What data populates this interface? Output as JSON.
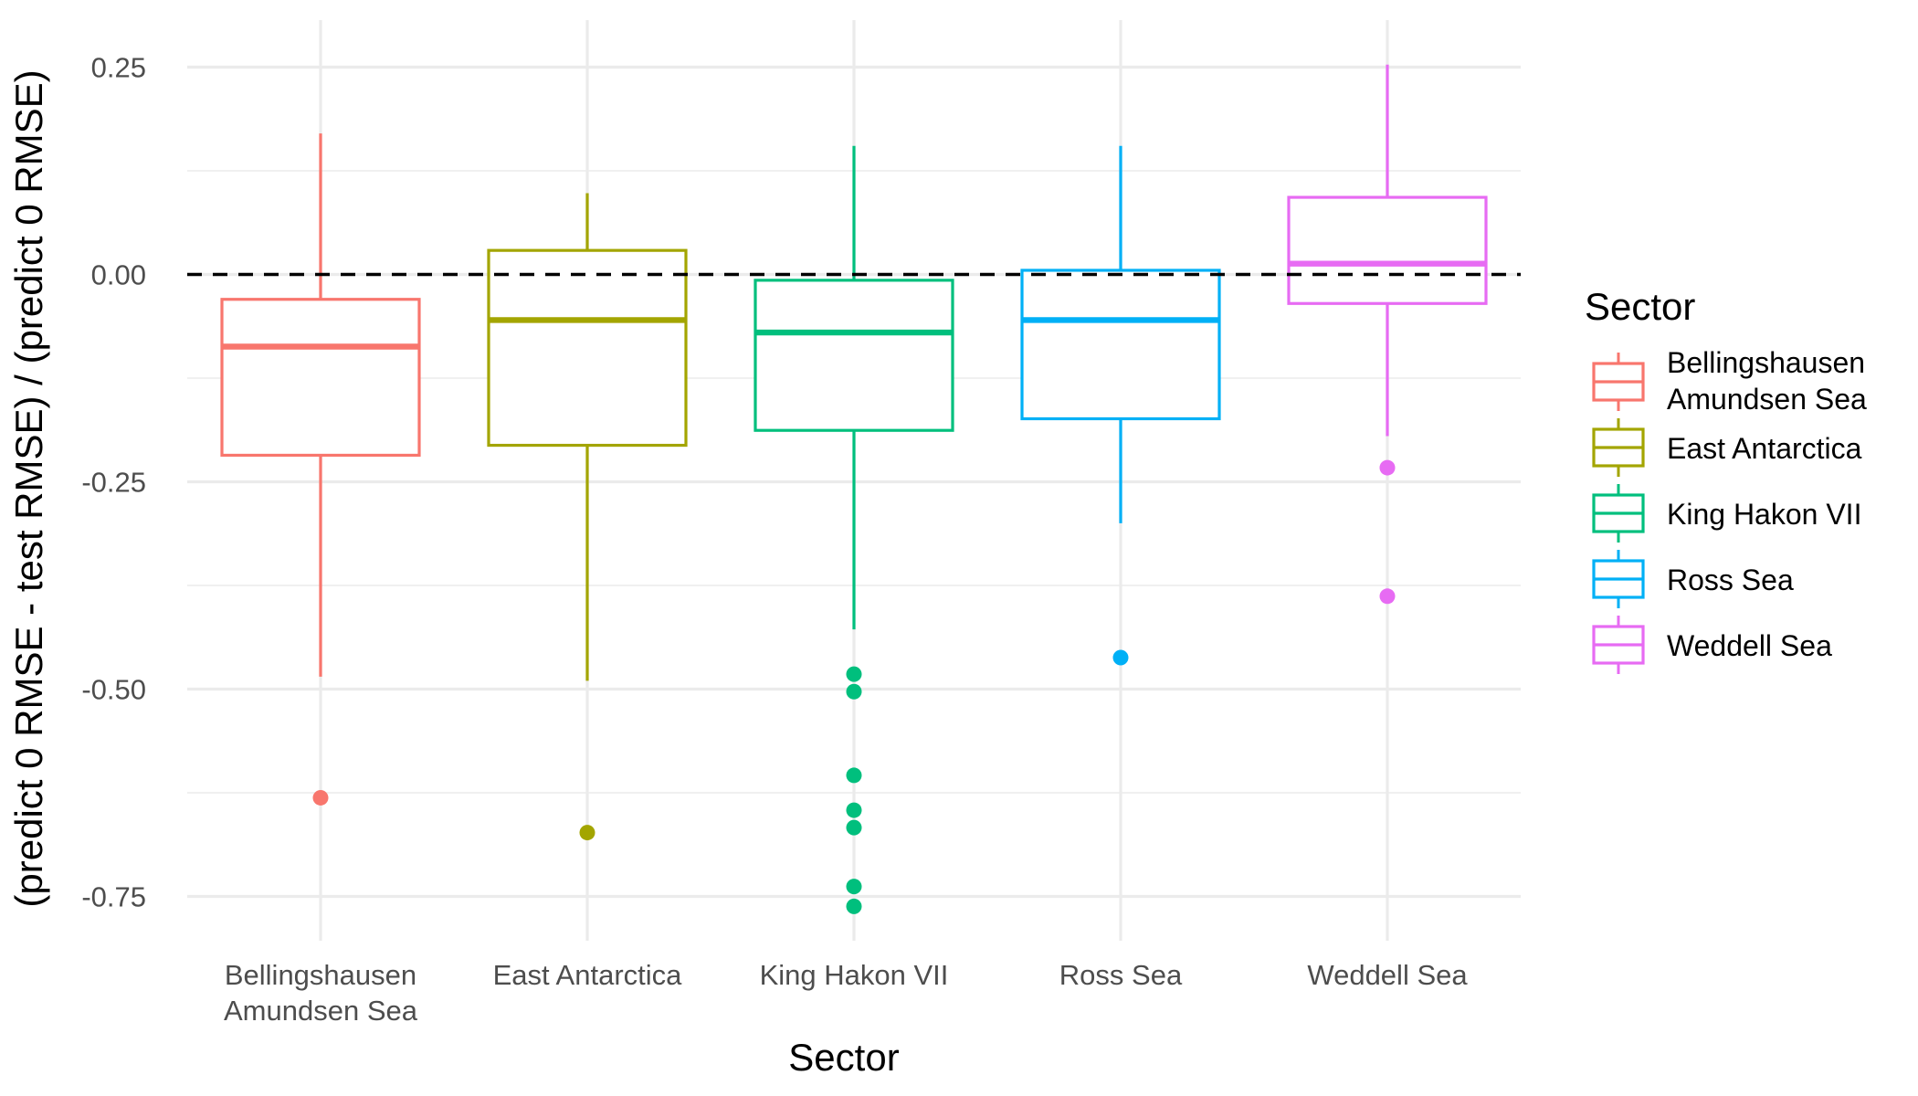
{
  "chart_data": {
    "type": "boxplot",
    "title": "",
    "xlabel": "Sector",
    "ylabel": "(predict 0 RMSE - test RMSE) / (predict 0 RMSE)",
    "ylim": [
      -0.81,
      0.3
    ],
    "y_ticks": [
      0.25,
      0.0,
      -0.25,
      -0.5,
      -0.75
    ],
    "y_tick_labels": [
      "0.25",
      "0.00",
      "-0.25",
      "-0.50",
      "-0.75"
    ],
    "y_minor_ticks": [
      0.125,
      -0.125,
      -0.375,
      -0.625
    ],
    "grid": true,
    "reference_line": {
      "y": 0,
      "style": "dashed",
      "color": "#000000"
    },
    "legend": {
      "title": "Sector",
      "position": "right",
      "entries": [
        {
          "lines": [
            "Bellingshausen",
            "Amundsen Sea"
          ],
          "color": "#F8766D"
        },
        {
          "lines": [
            "East Antarctica"
          ],
          "color": "#A3A500"
        },
        {
          "lines": [
            "King Hakon VII"
          ],
          "color": "#00BF7D"
        },
        {
          "lines": [
            "Ross Sea"
          ],
          "color": "#00B0F6"
        },
        {
          "lines": [
            "Weddell Sea"
          ],
          "color": "#E76BF3"
        }
      ]
    },
    "series": [
      {
        "category_lines": [
          "Bellingshausen",
          "Amundsen Sea"
        ],
        "color": "#F8766D",
        "whisker_low": -0.485,
        "q1": -0.218,
        "median": -0.087,
        "q3": -0.03,
        "whisker_high": 0.17,
        "outliers": [
          -0.631
        ]
      },
      {
        "category_lines": [
          "East Antarctica"
        ],
        "color": "#A3A500",
        "whisker_low": -0.49,
        "q1": -0.206,
        "median": -0.055,
        "q3": 0.029,
        "whisker_high": 0.098,
        "outliers": [
          -0.673
        ]
      },
      {
        "category_lines": [
          "King Hakon VII"
        ],
        "color": "#00BF7D",
        "whisker_low": -0.428,
        "q1": -0.188,
        "median": -0.07,
        "q3": -0.007,
        "whisker_high": 0.155,
        "outliers": [
          -0.482,
          -0.503,
          -0.604,
          -0.646,
          -0.667,
          -0.738,
          -0.762
        ]
      },
      {
        "category_lines": [
          "Ross Sea"
        ],
        "color": "#00B0F6",
        "whisker_low": -0.3,
        "q1": -0.174,
        "median": -0.055,
        "q3": 0.005,
        "whisker_high": 0.155,
        "outliers": [
          -0.462
        ]
      },
      {
        "category_lines": [
          "Weddell Sea"
        ],
        "color": "#E76BF3",
        "whisker_low": -0.195,
        "q1": -0.035,
        "median": 0.013,
        "q3": 0.093,
        "whisker_high": 0.253,
        "outliers": [
          -0.233,
          -0.388
        ]
      }
    ]
  }
}
